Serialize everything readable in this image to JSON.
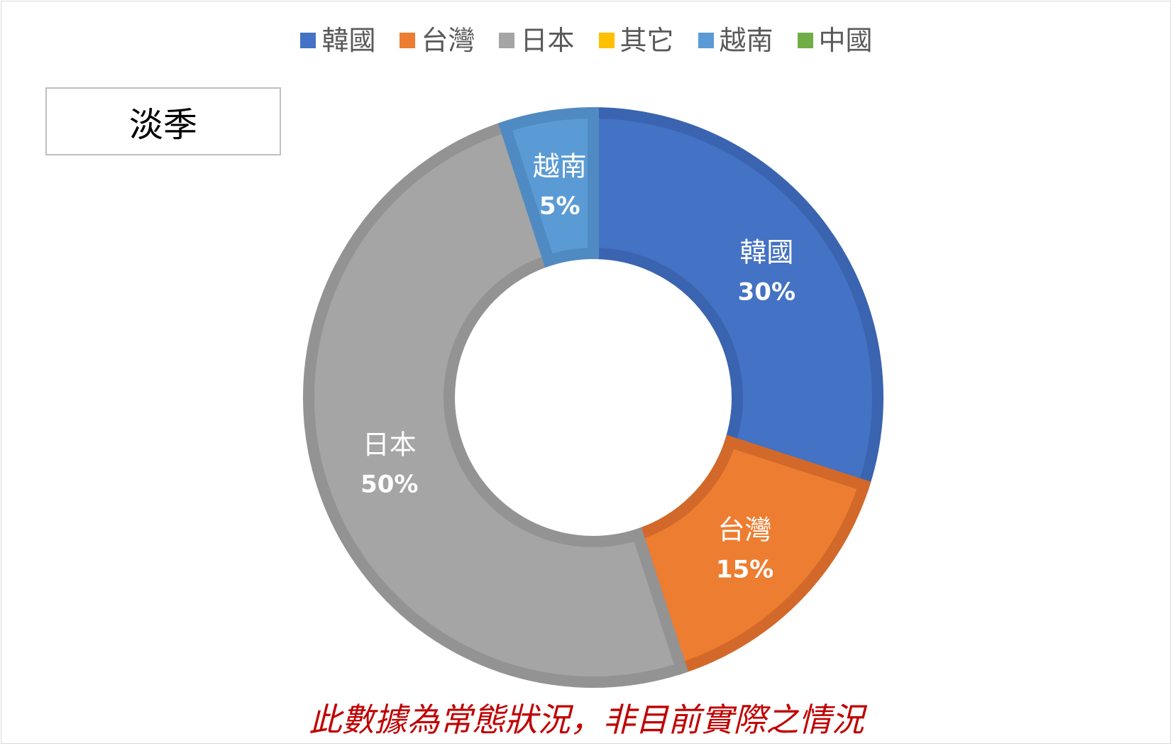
{
  "legend": [
    {
      "label": "韓國",
      "color": "#4472c4"
    },
    {
      "label": "台灣",
      "color": "#ed7d31"
    },
    {
      "label": "日本",
      "color": "#a5a5a5"
    },
    {
      "label": "其它",
      "color": "#ffc000"
    },
    {
      "label": "越南",
      "color": "#5b9bd5"
    },
    {
      "label": "中國",
      "color": "#70ad47"
    }
  ],
  "season_label": "淡季",
  "footnote": "此數據為常態狀況，非目前實際之情況",
  "chart_data": {
    "type": "pie",
    "donut": true,
    "legend_position": "top",
    "categories": [
      "韓國",
      "台灣",
      "日本",
      "其它",
      "越南",
      "中國"
    ],
    "values": [
      30,
      15,
      50,
      0,
      5,
      0
    ],
    "unit": "%",
    "slices": [
      {
        "label": "韓國",
        "value": 30,
        "percent_label": "30%",
        "color": "#4472c4",
        "border": "#3a64b0"
      },
      {
        "label": "台灣",
        "value": 15,
        "percent_label": "15%",
        "color": "#ed7d31",
        "border": "#d2692a"
      },
      {
        "label": "日本",
        "value": 50,
        "percent_label": "50%",
        "color": "#a5a5a5",
        "border": "#939393"
      },
      {
        "label": "越南",
        "value": 5,
        "percent_label": "5%",
        "color": "#5b9bd5",
        "border": "#4f8bc2"
      }
    ]
  }
}
